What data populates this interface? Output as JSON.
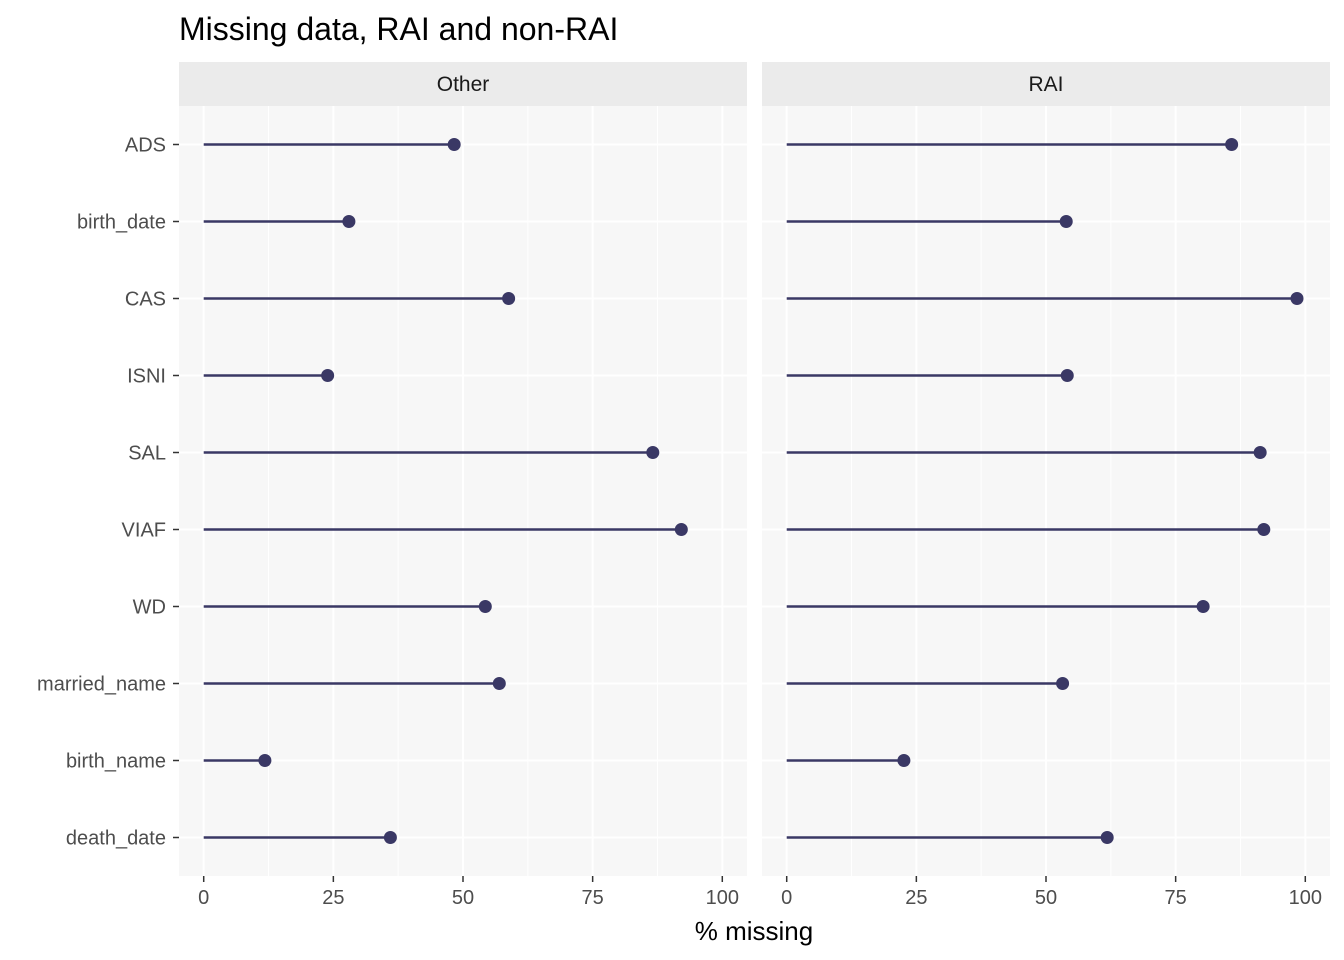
{
  "chart_data": {
    "type": "lollipop",
    "title": "Missing data, RAI and non-RAI",
    "xlabel": "% missing",
    "ylabel": "",
    "xlim": [
      0,
      100
    ],
    "x_ticks": [
      "0",
      "25",
      "50",
      "75",
      "100"
    ],
    "grid": true,
    "categories": [
      "ADS",
      "birth_date",
      "CAS",
      "ISNI",
      "SAL",
      "VIAF",
      "WD",
      "married_name",
      "birth_name",
      "death_date"
    ],
    "panels": [
      {
        "name": "Other",
        "values": [
          48.3,
          28.0,
          58.8,
          23.9,
          86.6,
          92.1,
          54.3,
          57.0,
          11.8,
          36.0
        ]
      },
      {
        "name": "RAI",
        "values": [
          85.8,
          53.9,
          98.4,
          54.1,
          91.3,
          92.0,
          80.3,
          53.2,
          22.6,
          61.8
        ]
      }
    ],
    "colors": {
      "mark": "#3a3865",
      "panel_bg": "#f7f7f7",
      "strip_bg": "#ebebeb",
      "grid": "#ffffff"
    }
  }
}
